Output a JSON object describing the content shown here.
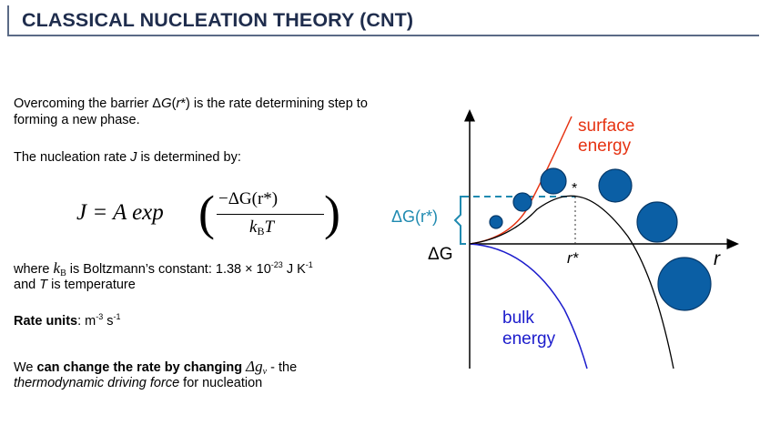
{
  "header": {
    "title": "CLASSICAL NUCLEATION THEORY (CNT)"
  },
  "body": {
    "p1_line1_a": "Overcoming the barrier Δ",
    "p1_line1_g": "G",
    "p1_line1_b": "(",
    "p1_line1_r": "r",
    "p1_line1_c": "*) is the rate determining step to",
    "p1_line2": "forming a new phase.",
    "p2_a": "The nucleation rate ",
    "p2_j": "J",
    "p2_b": " is determined by:",
    "eq_lhs": "J = A exp",
    "eq_num": "−ΔG(r*)",
    "eq_den_k": "k",
    "eq_den_b": "B",
    "eq_den_t": "T",
    "where_a": "where ",
    "where_k": "k",
    "where_kb": "B",
    "where_b": " is Boltzmann’s constant: 1.38 × 10",
    "where_exp": "-23",
    "where_c": " J K",
    "where_exp2": "-1",
    "where_line2_a": "and ",
    "where_t": "T",
    "where_line2_b": " is temperature",
    "rate_label": "Rate units",
    "rate_colon": ": m",
    "rate_exp1": "-3",
    "rate_s": " s",
    "rate_exp2": "-1",
    "change_a": "We ",
    "change_b": "can change the rate by changing ",
    "change_dg": "Δg",
    "change_v": "v",
    "change_c": " - the",
    "change_line2_i": "thermodynamic driving force",
    "change_line2_b": " for nucleation"
  },
  "diagram": {
    "surface_label_1": "surface",
    "surface_label_2": "energy",
    "bulk_label_1": "bulk",
    "bulk_label_2": "energy",
    "barrier_label": "ΔG(r*)",
    "y_axis_label": "ΔG",
    "x_axis_label": "r",
    "critical_r_label": "r*",
    "star_label": "*",
    "colors": {
      "surface": "#e63312",
      "bulk": "#1c1ccc",
      "barrier": "#1f8ab0",
      "nucleus": "#0b5fa5",
      "curve": "#000000"
    }
  }
}
